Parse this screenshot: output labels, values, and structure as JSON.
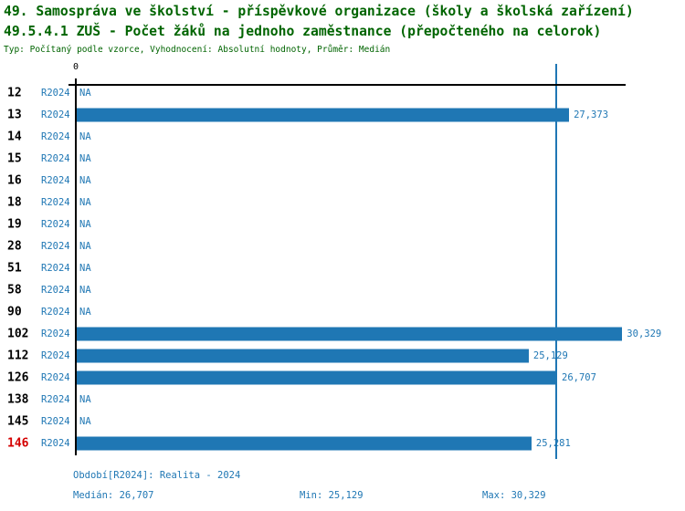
{
  "header": {
    "title1": "49. Samospráva ve školství - příspěvkové organizace (školy a školská zařízení)",
    "title2": "49.5.4.1 ZUŠ - Počet žáků na jednoho zaměstnance (přepočteného na celorok)",
    "meta": "Typ: Počítaný podle vzorce, Vyhodnocení: Absolutní hodnoty, Průměr: Medián"
  },
  "chart_data": {
    "type": "bar",
    "orientation": "horizontal",
    "x_origin_label": "0",
    "period_label": "R2024",
    "na_label": "NA",
    "highlighted_category": "146",
    "categories": [
      "12",
      "13",
      "14",
      "15",
      "16",
      "18",
      "19",
      "28",
      "51",
      "58",
      "90",
      "102",
      "112",
      "126",
      "138",
      "145",
      "146"
    ],
    "rows": [
      {
        "category": "12",
        "period": "R2024",
        "value": null,
        "value_label": "NA"
      },
      {
        "category": "13",
        "period": "R2024",
        "value": 27373,
        "value_label": "27,373"
      },
      {
        "category": "14",
        "period": "R2024",
        "value": null,
        "value_label": "NA"
      },
      {
        "category": "15",
        "period": "R2024",
        "value": null,
        "value_label": "NA"
      },
      {
        "category": "16",
        "period": "R2024",
        "value": null,
        "value_label": "NA"
      },
      {
        "category": "18",
        "period": "R2024",
        "value": null,
        "value_label": "NA"
      },
      {
        "category": "19",
        "period": "R2024",
        "value": null,
        "value_label": "NA"
      },
      {
        "category": "28",
        "period": "R2024",
        "value": null,
        "value_label": "NA"
      },
      {
        "category": "51",
        "period": "R2024",
        "value": null,
        "value_label": "NA"
      },
      {
        "category": "58",
        "period": "R2024",
        "value": null,
        "value_label": "NA"
      },
      {
        "category": "90",
        "period": "R2024",
        "value": null,
        "value_label": "NA"
      },
      {
        "category": "102",
        "period": "R2024",
        "value": 30329,
        "value_label": "30,329"
      },
      {
        "category": "112",
        "period": "R2024",
        "value": 25129,
        "value_label": "25,129"
      },
      {
        "category": "126",
        "period": "R2024",
        "value": 26707,
        "value_label": "26,707"
      },
      {
        "category": "138",
        "period": "R2024",
        "value": null,
        "value_label": "NA"
      },
      {
        "category": "145",
        "period": "R2024",
        "value": null,
        "value_label": "NA"
      },
      {
        "category": "146",
        "period": "R2024",
        "value": 25281,
        "value_label": "25,281"
      }
    ],
    "stats": {
      "median": 26707,
      "min": 25129,
      "max": 30329
    },
    "xlim": [
      0,
      33860
    ],
    "grid": false,
    "legend": false,
    "colors": {
      "bar": "#1f77b4",
      "median_line": "#1f77b4",
      "value_text": "#1f77b4",
      "period_text": "#1f77b4",
      "row_number": "#000000",
      "row_number_highlight": "#d40000",
      "title": "#006400",
      "axis": "#000000"
    }
  },
  "footer": {
    "period": "Období[R2024]: Realita - 2024",
    "median": "Medián: 26,707",
    "min": "Min: 25,129",
    "max": "Max: 30,329"
  }
}
